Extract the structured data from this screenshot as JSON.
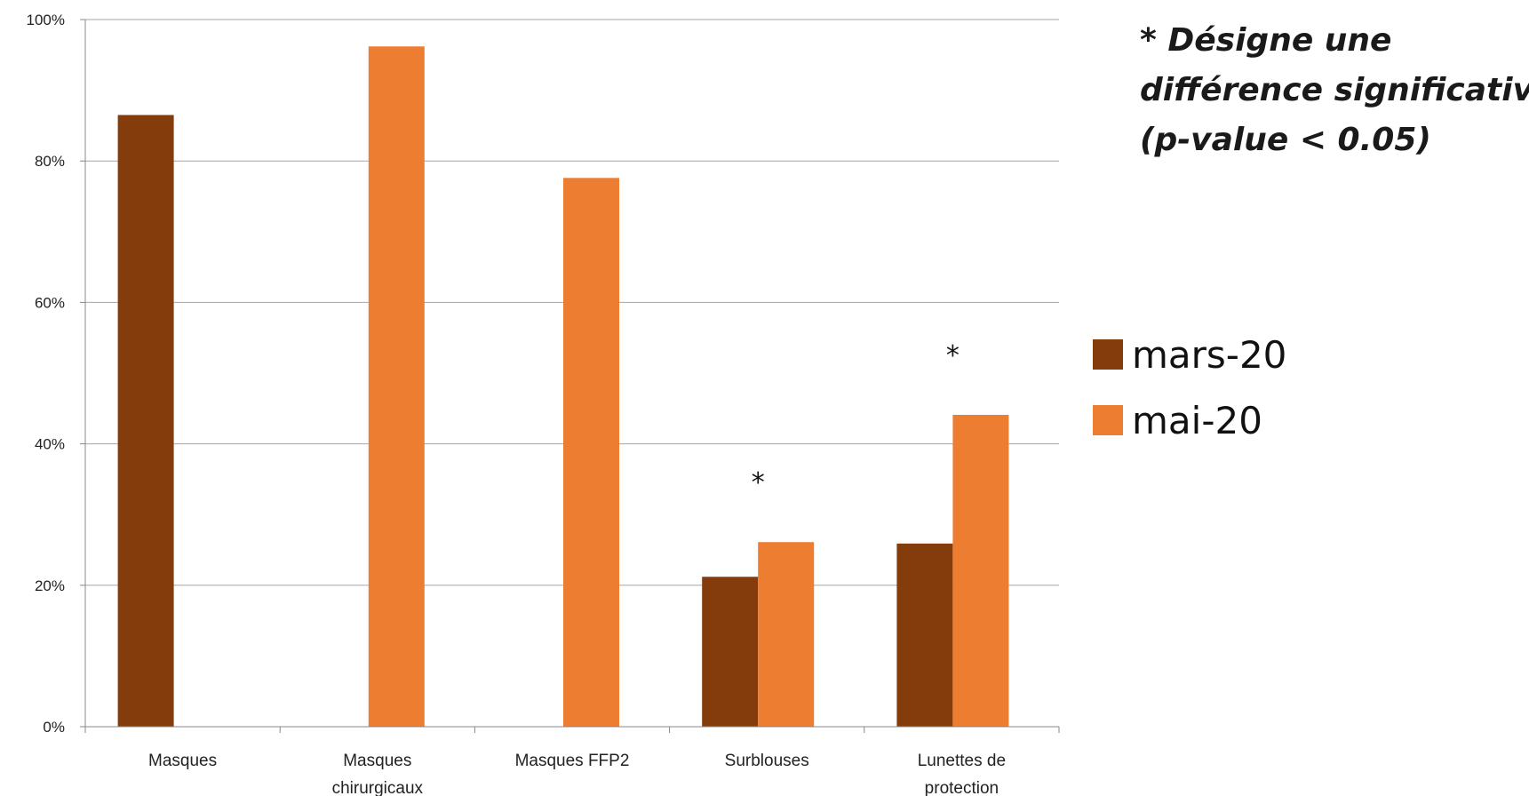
{
  "chart_data": {
    "type": "bar",
    "categories": [
      "Masques",
      "Masques chirurgicaux",
      "Masques FFP2",
      "Surblouses",
      "Lunettes de protection"
    ],
    "category_lines": [
      [
        "Masques"
      ],
      [
        "Masques",
        "chirurgicaux"
      ],
      [
        "Masques FFP2"
      ],
      [
        "Surblouses"
      ],
      [
        "Lunettes de",
        "protection"
      ]
    ],
    "series": [
      {
        "name": "mars-20",
        "color": "#843C0C",
        "values": [
          86.5,
          null,
          null,
          21.2,
          25.9
        ]
      },
      {
        "name": "mai-20",
        "color": "#ED7D31",
        "values": [
          null,
          96.2,
          77.6,
          26.1,
          44.1
        ]
      }
    ],
    "ylim": [
      0,
      100
    ],
    "yticks": [
      "0%",
      "20%",
      "40%",
      "60%",
      "80%",
      "100%"
    ],
    "significance_marker": "*",
    "significant_categories": [
      "Surblouses",
      "Lunettes de protection"
    ],
    "gridlines": true,
    "legend_position": "right",
    "note_lines": [
      "* Désigne une",
      "différence significative",
      "(p-value < 0.05)"
    ],
    "gridline_color": "#a6a6a6"
  }
}
